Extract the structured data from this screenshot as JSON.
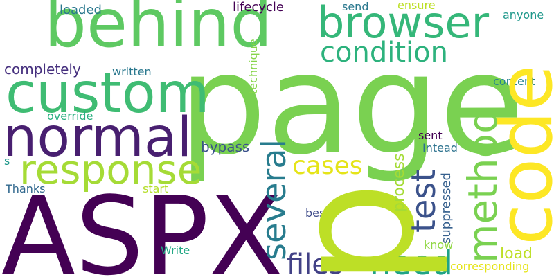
{
  "words": [
    {
      "text": "page",
      "color": "#7ad151"
    },
    {
      "text": "p",
      "color": "#bddf26"
    },
    {
      "text": "ASPX",
      "color": "#440154"
    },
    {
      "text": "behind",
      "color": "#5ec962"
    },
    {
      "text": "code",
      "color": "#fde725"
    },
    {
      "text": "custom",
      "color": "#3fbc73"
    },
    {
      "text": "normal",
      "color": "#481f70"
    },
    {
      "text": "response",
      "color": "#a5db36"
    },
    {
      "text": "browser",
      "color": "#35b779"
    },
    {
      "text": "condition",
      "color": "#2db27d"
    },
    {
      "text": "method",
      "color": "#7ad151"
    },
    {
      "text": "several",
      "color": "#287c8e"
    },
    {
      "text": "test",
      "color": "#3b528b"
    },
    {
      "text": "need",
      "color": "#20a386"
    },
    {
      "text": "files",
      "color": "#424186"
    },
    {
      "text": "cases",
      "color": "#e5e419"
    },
    {
      "text": "completely",
      "color": "#46307e"
    },
    {
      "text": "bypass",
      "color": "#3b528b"
    },
    {
      "text": "process",
      "color": "#a5db36"
    },
    {
      "text": "suppressed",
      "color": "#355f8d"
    },
    {
      "text": "load",
      "color": "#bddf26"
    },
    {
      "text": "corresponding",
      "color": "#e5e419"
    },
    {
      "text": "loaded",
      "color": "#2a788e"
    },
    {
      "text": "lifecycle",
      "color": "#440154"
    },
    {
      "text": "send",
      "color": "#2a788e"
    },
    {
      "text": "ensure",
      "color": "#bddf26"
    },
    {
      "text": "anyone",
      "color": "#1f988b"
    },
    {
      "text": "written",
      "color": "#2a788e"
    },
    {
      "text": "technique",
      "color": "#86d549"
    },
    {
      "text": "content",
      "color": "#25848e"
    },
    {
      "text": "override",
      "color": "#29af7f"
    },
    {
      "text": "sent",
      "color": "#440154"
    },
    {
      "text": "Intead",
      "color": "#2c728e"
    },
    {
      "text": "s",
      "color": "#1f988b"
    },
    {
      "text": "Thanks",
      "color": "#31688e"
    },
    {
      "text": "start",
      "color": "#b5de2b"
    },
    {
      "text": "best",
      "color": "#3e4a89"
    },
    {
      "text": "know",
      "color": "#90d743"
    },
    {
      "text": "Write",
      "color": "#22a884"
    }
  ]
}
